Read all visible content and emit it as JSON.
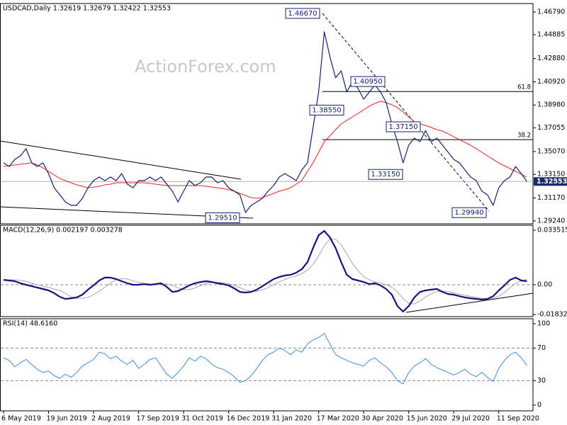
{
  "chart_data": [
    {
      "type": "line",
      "title": "USDCAD,Daily  1.32619 1.32679 1.32422 1.32553",
      "watermark": "ActionForex.com",
      "categories": [
        "6 May 2019",
        null,
        null,
        null,
        null,
        null,
        null,
        null,
        "19 Jun 2019",
        null,
        null,
        null,
        null,
        null,
        null,
        null,
        "2 Aug 2019",
        null,
        null,
        null,
        null,
        null,
        null,
        null,
        "17 Sep 2019",
        null,
        null,
        null,
        null,
        null,
        null,
        null,
        "31 Oct 2019",
        null,
        null,
        null,
        null,
        null,
        null,
        null,
        "16 Dec 2019",
        null,
        null,
        null,
        null,
        null,
        null,
        null,
        "31 Jan 2020",
        null,
        null,
        null,
        null,
        null,
        null,
        null,
        "17 Mar 2020",
        null,
        null,
        null,
        null,
        null,
        null,
        null,
        "30 Apr 2020",
        null,
        null,
        null,
        null,
        null,
        null,
        null,
        "15 Jun 2020",
        null,
        null,
        null,
        null,
        null,
        null,
        null,
        "29 Jul 2020",
        null,
        null,
        null,
        null,
        null,
        null,
        null,
        "11 Sep 2020",
        null,
        null,
        null,
        null,
        null
      ],
      "series": [
        {
          "color": "#16206e",
          "width": 1.2,
          "values": [
            1.3412,
            1.3382,
            1.3441,
            1.3471,
            1.3531,
            1.3412,
            1.3382,
            1.3412,
            1.3322,
            1.3203,
            1.3144,
            1.3084,
            1.3055,
            1.3055,
            1.3114,
            1.3203,
            1.3263,
            1.3293,
            1.3263,
            1.3293,
            1.3263,
            1.3322,
            1.3233,
            1.3203,
            1.3263,
            1.3263,
            1.3293,
            1.3263,
            1.3293,
            1.3233,
            1.3174,
            1.3084,
            1.3174,
            1.3263,
            1.3221,
            1.3245,
            1.3293,
            1.3293,
            1.3245,
            1.3263,
            1.3203,
            1.3174,
            1.3144,
            1.2995,
            1.3055,
            1.3084,
            1.3114,
            1.3174,
            1.3221,
            1.3293,
            1.3322,
            1.3293,
            1.3263,
            1.3352,
            1.3412,
            1.3709,
            1.4007,
            1.4512,
            1.4304,
            1.4126,
            1.4185,
            1.4007,
            1.4096,
            1.4036,
            1.3947,
            1.4007,
            1.4066,
            1.4007,
            1.3917,
            1.3739,
            1.359,
            1.3412,
            1.356,
            1.362,
            1.359,
            1.3683,
            1.359,
            1.362,
            1.356,
            1.3501,
            1.3441,
            1.3412,
            1.3352,
            1.3293,
            1.3263,
            1.3174,
            1.3144,
            1.3055,
            1.3203,
            1.3263,
            1.3293,
            1.3382,
            1.3322,
            1.3255
          ]
        },
        {
          "color": "#e02828",
          "width": 1,
          "values": [
            1.3382,
            1.3388,
            1.3394,
            1.34,
            1.3406,
            1.3412,
            1.3394,
            1.337,
            1.334,
            1.3311,
            1.3281,
            1.3263,
            1.3245,
            1.3227,
            1.3215,
            1.3203,
            1.3209,
            1.3215,
            1.3227,
            1.3233,
            1.3245,
            1.3245,
            1.3245,
            1.3245,
            1.3245,
            1.3245,
            1.3239,
            1.3233,
            1.3227,
            1.3221,
            1.3221,
            1.3221,
            1.3221,
            1.3221,
            1.3221,
            1.3221,
            1.3215,
            1.3209,
            1.3203,
            1.3197,
            1.3186,
            1.3174,
            1.3156,
            1.3138,
            1.312,
            1.3114,
            1.312,
            1.3138,
            1.3156,
            1.3174,
            1.3186,
            1.3203,
            1.3233,
            1.3263,
            1.334,
            1.3412,
            1.3501,
            1.359,
            1.3638,
            1.3691,
            1.3739,
            1.3769,
            1.3798,
            1.3828,
            1.3858,
            1.3888,
            1.3911,
            1.3929,
            1.3917,
            1.39,
            1.3876,
            1.384,
            1.3798,
            1.3757,
            1.3739,
            1.3727,
            1.3709,
            1.3691,
            1.3679,
            1.3656,
            1.3632,
            1.3608,
            1.3584,
            1.356,
            1.3531,
            1.3501,
            1.3471,
            1.3441,
            1.3412,
            1.3388,
            1.3364,
            1.334,
            1.3316,
            1.3293
          ]
        }
      ],
      "ylim": [
        1.29,
        1.475
      ],
      "yticks": [
        {
          "value": 1.4679,
          "label": "1.46790"
        },
        {
          "value": 1.44885,
          "label": "1.44885"
        },
        {
          "value": 1.4288,
          "label": "1.42880"
        },
        {
          "value": 1.4092,
          "label": "1.40920"
        },
        {
          "value": 1.3898,
          "label": "1.38980"
        },
        {
          "value": 1.37055,
          "label": "1.37055"
        },
        {
          "value": 1.3507,
          "label": "1.35070"
        },
        {
          "value": 1.3315,
          "label": "1.33150"
        },
        {
          "value": 1.3117,
          "label": "1.31170"
        },
        {
          "value": 1.2924,
          "label": "1.29240"
        }
      ],
      "grid": false,
      "last": {
        "value": 1.32553,
        "label": "1.32553"
      },
      "annotations": [
        {
          "value": 1.4667,
          "label": "1.46670"
        },
        {
          "value": 1.2951,
          "label": "1.29510"
        },
        {
          "value": 1.3855,
          "label": "1.38550"
        },
        {
          "value": 1.4095,
          "label": "1.40950"
        },
        {
          "value": 1.3715,
          "label": "1.37150"
        },
        {
          "value": 1.3315,
          "label": "1.33150"
        },
        {
          "value": 1.2994,
          "label": "1.29940"
        }
      ],
      "fib_levels": [
        {
          "value": 1.4011,
          "label": "61.8"
        },
        {
          "value": 1.3607,
          "label": "38.2"
        }
      ]
    },
    {
      "type": "line",
      "title": "MACD(12,26,9) 0.002197 0.003278",
      "series": [
        {
          "color": "#14147a",
          "width": 2.2,
          "values": [
            0.003,
            0.0026,
            0.0022,
            0.0009,
            0,
            -0.0009,
            -0.0017,
            -0.0026,
            -0.0035,
            -0.0052,
            -0.0074,
            -0.0087,
            -0.0083,
            -0.0078,
            -0.0061,
            -0.003,
            -0.0004,
            0.0026,
            0.0044,
            0.0044,
            0.0035,
            0.0022,
            0.0009,
            0,
            0,
            0.0004,
            0,
            0.0004,
            0.0009,
            -0.0013,
            -0.0044,
            -0.0039,
            -0.0022,
            -0.0004,
            0.0009,
            0.0017,
            0.0022,
            0.0017,
            0.0009,
            0.0004,
            -0.0004,
            -0.0022,
            -0.0044,
            -0.0048,
            -0.0044,
            -0.003,
            -0.0009,
            0.0013,
            0.0035,
            0.0048,
            0.0057,
            0.0061,
            0.0074,
            0.0096,
            0.0139,
            0.0226,
            0.0305,
            0.0331,
            0.0291,
            0.0226,
            0.0139,
            0.0061,
            0.0035,
            0.0026,
            0.0017,
            0.0004,
            0.0009,
            -0.0004,
            -0.0026,
            -0.0061,
            -0.0131,
            -0.0165,
            -0.0131,
            -0.0078,
            -0.0044,
            -0.0035,
            -0.003,
            -0.0026,
            -0.0044,
            -0.0057,
            -0.0061,
            -0.007,
            -0.0078,
            -0.0083,
            -0.0087,
            -0.0091,
            -0.0087,
            -0.007,
            -0.0035,
            -0.0004,
            0.003,
            0.0044,
            0.0026,
            0.0022
          ]
        },
        {
          "color": "#a8a8a8",
          "width": 1,
          "values": [
            0.003,
            0.003,
            0.003,
            0.0026,
            0.0022,
            0.0009,
            0,
            -0.0009,
            -0.0017,
            -0.0026,
            -0.0035,
            -0.0052,
            -0.0074,
            -0.0083,
            -0.0083,
            -0.0078,
            -0.0061,
            -0.004,
            -0.0015,
            0.001,
            0.003,
            0.0038,
            0.0035,
            0.0025,
            0.0015,
            0.0008,
            0.0004,
            0.0003,
            0.0004,
            0.0004,
            -0.0005,
            -0.002,
            -0.003,
            -0.003,
            -0.002,
            -0.0005,
            0.0008,
            0.0015,
            0.0015,
            0.0012,
            0.0006,
            -0.0004,
            -0.0018,
            -0.0032,
            -0.004,
            -0.004,
            -0.0032,
            -0.0018,
            0,
            0.0018,
            0.0033,
            0.0045,
            0.0055,
            0.0068,
            0.009,
            0.0125,
            0.018,
            0.024,
            0.028,
            0.028,
            0.0245,
            0.019,
            0.013,
            0.0085,
            0.005,
            0.003,
            0.0018,
            0.001,
            0,
            -0.0015,
            -0.0045,
            -0.0085,
            -0.0115,
            -0.0118,
            -0.01,
            -0.0075,
            -0.0055,
            -0.0042,
            -0.0038,
            -0.0042,
            -0.005,
            -0.0058,
            -0.0065,
            -0.0072,
            -0.0078,
            -0.0083,
            -0.0086,
            -0.0083,
            -0.007,
            -0.0048,
            -0.0018,
            0.0008,
            0.0025,
            0.0033
          ]
        }
      ],
      "ylim": [
        -0.0196,
        0.0366
      ],
      "yticks": [
        0.033515,
        {
          "value": 0,
          "label": "0.00"
        },
        -0.018324
      ],
      "grid": true
    },
    {
      "type": "line",
      "title": "RSI(14) 48.6160",
      "series": [
        {
          "color": "#3d8fdc",
          "width": 1,
          "values": [
            58,
            55,
            47,
            52,
            56,
            50,
            44,
            40,
            42,
            36,
            33,
            38,
            34,
            40,
            48,
            52,
            56,
            65,
            63,
            57,
            60,
            54,
            50,
            55,
            45,
            50,
            56,
            58,
            48,
            38,
            33,
            40,
            48,
            58,
            54,
            60,
            57,
            50,
            46,
            44,
            40,
            35,
            28,
            30,
            36,
            45,
            55,
            62,
            65,
            70,
            67,
            62,
            68,
            65,
            75,
            80,
            83,
            88,
            75,
            62,
            58,
            55,
            52,
            50,
            48,
            55,
            58,
            52,
            47,
            40,
            30,
            26,
            40,
            48,
            52,
            57,
            50,
            46,
            43,
            40,
            37,
            40,
            44,
            38,
            35,
            40,
            34,
            29,
            45,
            55,
            62,
            65,
            58,
            49
          ]
        }
      ],
      "ylim": [
        -7,
        106
      ],
      "yticks": [
        100,
        70,
        30,
        0
      ],
      "grid": true
    }
  ]
}
